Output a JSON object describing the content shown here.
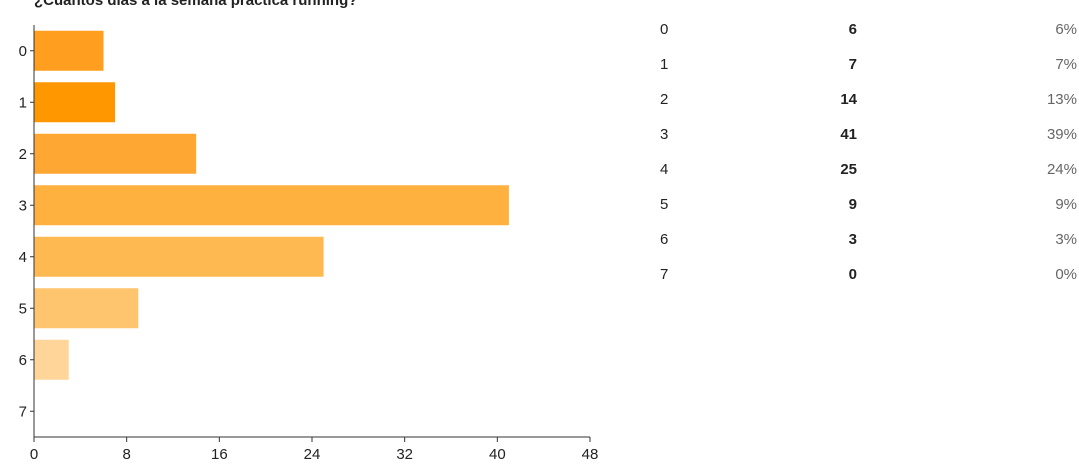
{
  "question": "¿Cuántos días a la semana practica running?",
  "colors": {
    "bars": [
      "#ff9e1f",
      "#ff9800",
      "#ffa633",
      "#ffb13f",
      "#ffb951",
      "#ffc46e",
      "#ffd59a",
      "#ffe3bb"
    ],
    "axis": "#333333"
  },
  "chart_data": {
    "type": "bar",
    "orientation": "horizontal",
    "title": "¿Cuántos días a la semana practica running?",
    "categories": [
      "0",
      "1",
      "2",
      "3",
      "4",
      "5",
      "6",
      "7"
    ],
    "values": [
      6,
      7,
      14,
      41,
      25,
      9,
      3,
      0
    ],
    "xlim": [
      0,
      48
    ],
    "xticks": [
      0,
      8,
      16,
      24,
      32,
      40,
      48
    ],
    "grid": false
  },
  "table": {
    "rows": [
      {
        "label": "0",
        "count": "6",
        "pct": "6%"
      },
      {
        "label": "1",
        "count": "7",
        "pct": "7%"
      },
      {
        "label": "2",
        "count": "14",
        "pct": "13%"
      },
      {
        "label": "3",
        "count": "41",
        "pct": "39%"
      },
      {
        "label": "4",
        "count": "25",
        "pct": "24%"
      },
      {
        "label": "5",
        "count": "9",
        "pct": "9%"
      },
      {
        "label": "6",
        "count": "3",
        "pct": "3%"
      },
      {
        "label": "7",
        "count": "0",
        "pct": "0%"
      }
    ]
  }
}
